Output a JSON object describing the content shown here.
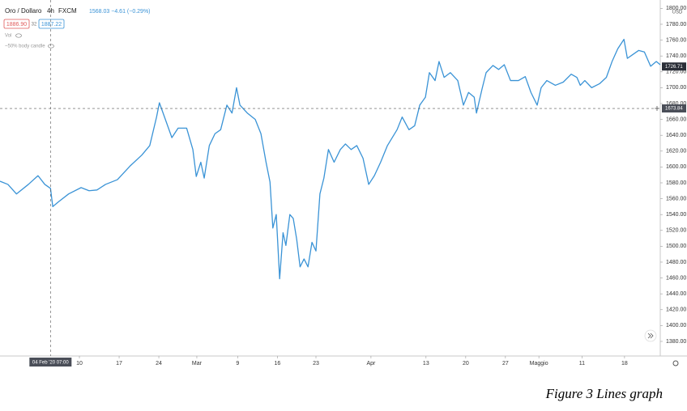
{
  "chart_data": {
    "type": "line",
    "title": "Oro / Dollaro",
    "interval": "4h",
    "source": "FXCM",
    "quote": "1568.03 −4.61 (−0.29%)",
    "sell_price": "1886.90",
    "spread": "32",
    "buy_price": "1887.22",
    "indicators": [
      "Vol",
      "~50% body candle"
    ],
    "currency": "USD",
    "color": "#3a93d6",
    "grid": false,
    "xlim": [
      27,
      143.4
    ],
    "ylim": [
      1361.6,
      1810.6
    ],
    "xticks": [
      {
        "value": 41,
        "label": "10"
      },
      {
        "value": 48,
        "label": "17"
      },
      {
        "value": 55,
        "label": "24"
      },
      {
        "value": 61.7,
        "label": "Mar"
      },
      {
        "value": 68.9,
        "label": "9"
      },
      {
        "value": 75.9,
        "label": "16"
      },
      {
        "value": 82.7,
        "label": "23"
      },
      {
        "value": 92.4,
        "label": "Apr"
      },
      {
        "value": 102.1,
        "label": "13"
      },
      {
        "value": 109.1,
        "label": "20"
      },
      {
        "value": 116.1,
        "label": "27"
      },
      {
        "value": 122,
        "label": "Maggio"
      },
      {
        "value": 129.6,
        "label": "11"
      },
      {
        "value": 137.1,
        "label": "18"
      }
    ],
    "yticks": [
      {
        "value": 1380,
        "label": "1380.00"
      },
      {
        "value": 1400,
        "label": "1400.00"
      },
      {
        "value": 1420,
        "label": "1420.00"
      },
      {
        "value": 1440,
        "label": "1440.00"
      },
      {
        "value": 1460,
        "label": "1460.00"
      },
      {
        "value": 1480,
        "label": "1480.00"
      },
      {
        "value": 1500,
        "label": "1500.00"
      },
      {
        "value": 1520,
        "label": "1520.00"
      },
      {
        "value": 1540,
        "label": "1540.00"
      },
      {
        "value": 1560,
        "label": "1560.00"
      },
      {
        "value": 1580,
        "label": "1580.00"
      },
      {
        "value": 1600,
        "label": "1600.00"
      },
      {
        "value": 1620,
        "label": "1620.00"
      },
      {
        "value": 1640,
        "label": "1640.00"
      },
      {
        "value": 1660,
        "label": "1660.00"
      },
      {
        "value": 1680,
        "label": "1680.00"
      },
      {
        "value": 1700,
        "label": "1700.00"
      },
      {
        "value": 1720,
        "label": "1720.00"
      },
      {
        "value": 1740,
        "label": "1740.00"
      },
      {
        "value": 1760,
        "label": "1760.00"
      },
      {
        "value": 1780,
        "label": "1780.00"
      },
      {
        "value": 1800,
        "label": "1800.00"
      }
    ],
    "last_price": 1726.71,
    "crosshair": {
      "x": 35.9,
      "x_label": "04 Feb '20   07:00",
      "y": 1673.84
    },
    "x": [
      27,
      28.4,
      29.9,
      32,
      33.7,
      34.9,
      35.9,
      36.3,
      37.3,
      39.1,
      41.3,
      42.7,
      44.1,
      45.6,
      47.7,
      49.9,
      52,
      53.4,
      54.6,
      55.1,
      56.3,
      57.3,
      58.4,
      59.9,
      61,
      61.6,
      62.4,
      63,
      63.9,
      64.9,
      65.9,
      67,
      67.9,
      68.7,
      69.3,
      70.6,
      72,
      73,
      73.9,
      74.6,
      75.1,
      75.7,
      76.3,
      76.9,
      77.4,
      78.1,
      78.7,
      79.3,
      79.9,
      80.6,
      81.3,
      82,
      82.7,
      83.4,
      84.1,
      84.9,
      85.9,
      87,
      87.9,
      88.9,
      89.9,
      91,
      92,
      93,
      94.1,
      95.3,
      97,
      97.9,
      99.1,
      100.1,
      101,
      102,
      102.7,
      103.7,
      104.4,
      105.3,
      106.4,
      107.7,
      108.7,
      109.6,
      110.6,
      111,
      112,
      112.7,
      113.9,
      114.9,
      115.9,
      117,
      118.4,
      119.6,
      120.6,
      121.7,
      122.4,
      123.4,
      124.9,
      126.3,
      127.7,
      128.7,
      129.3,
      130.1,
      131.3,
      132.7,
      133.9,
      134.9,
      135.9,
      137,
      137.6,
      138.4,
      139.6,
      140.6,
      141.7,
      142.7,
      143.4
    ],
    "values": [
      1582,
      1578,
      1566,
      1578,
      1589,
      1578,
      1573,
      1550,
      1556,
      1566,
      1574,
      1570,
      1571,
      1578,
      1584,
      1601,
      1615,
      1627,
      1663,
      1681,
      1657,
      1637,
      1649,
      1649,
      1622,
      1588,
      1606,
      1586,
      1627,
      1642,
      1647,
      1678,
      1668,
      1700,
      1678,
      1668,
      1660,
      1642,
      1606,
      1581,
      1523,
      1540,
      1459,
      1517,
      1501,
      1540,
      1535,
      1509,
      1474,
      1484,
      1474,
      1505,
      1494,
      1566,
      1586,
      1622,
      1606,
      1622,
      1629,
      1622,
      1627,
      1611,
      1578,
      1589,
      1606,
      1627,
      1647,
      1663,
      1647,
      1652,
      1678,
      1688,
      1719,
      1709,
      1733,
      1713,
      1719,
      1709,
      1678,
      1694,
      1688,
      1668,
      1699,
      1719,
      1728,
      1723,
      1729,
      1709,
      1709,
      1714,
      1694,
      1678,
      1700,
      1709,
      1703,
      1707,
      1717,
      1713,
      1703,
      1709,
      1700,
      1705,
      1713,
      1733,
      1749,
      1761,
      1737,
      1741,
      1747,
      1745,
      1727,
      1733,
      1729
    ]
  },
  "caption": "Figure 3 Lines graph"
}
